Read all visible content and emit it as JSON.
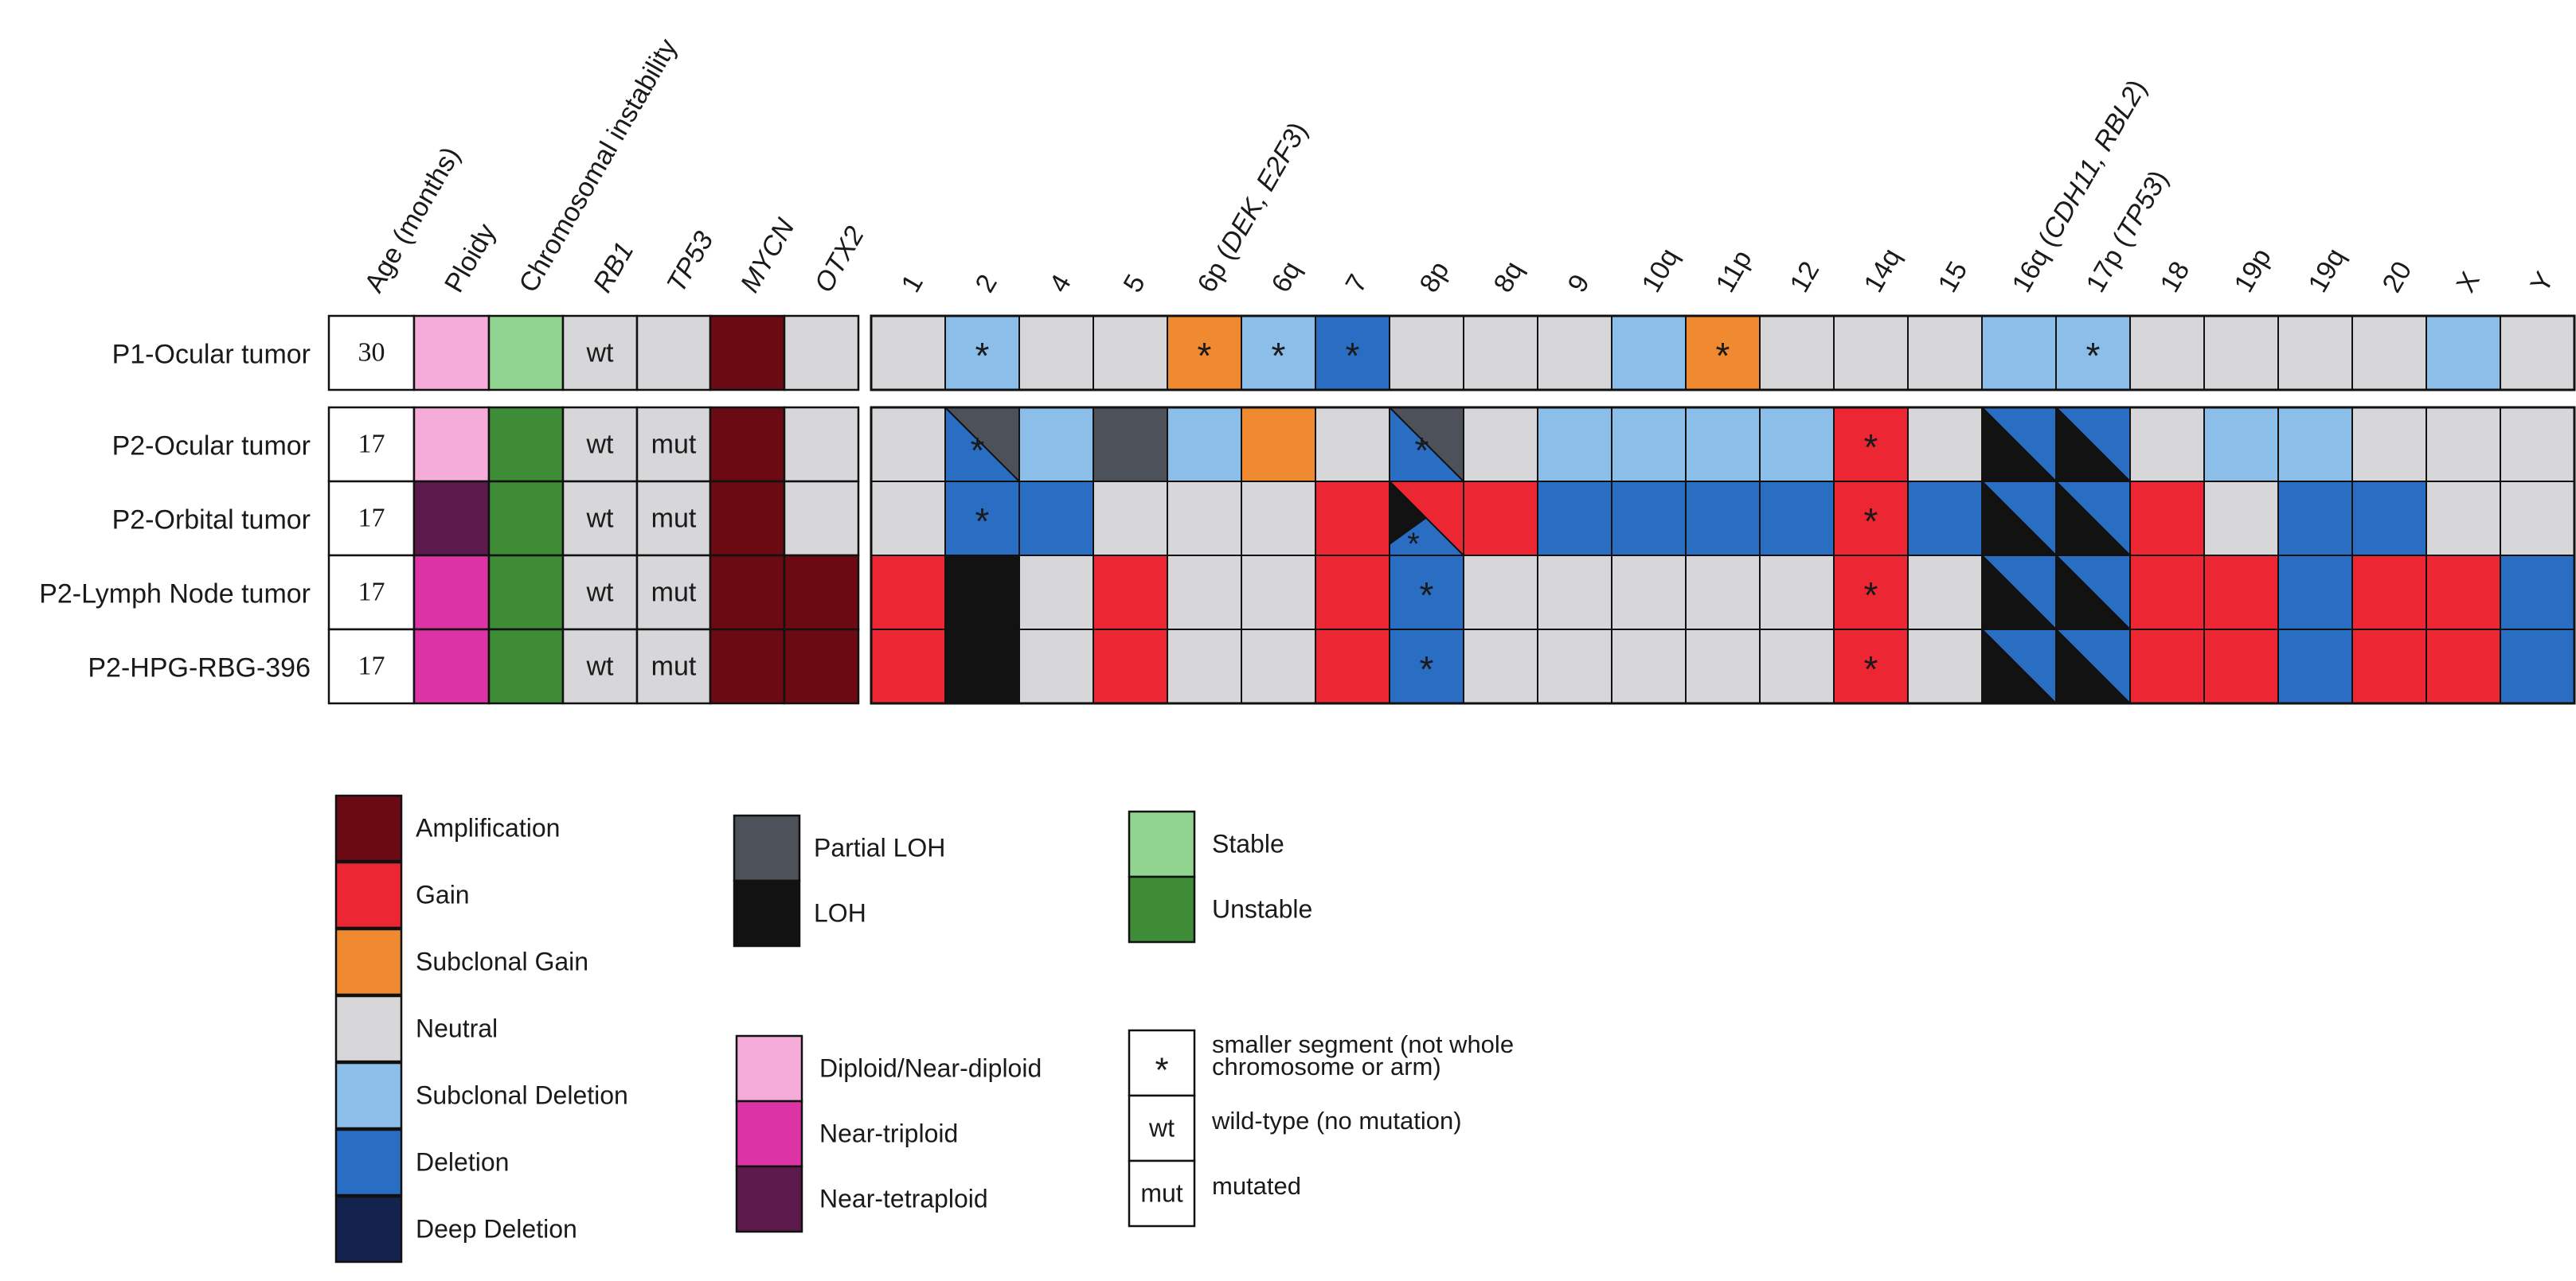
{
  "chart_data": {
    "type": "heatmap",
    "title": "",
    "samples": [
      {
        "name": "P1-Ocular tumor",
        "age": "30"
      },
      {
        "name": "P2-Ocular tumor",
        "age": "17"
      },
      {
        "name": "P2-Orbital tumor",
        "age": "17"
      },
      {
        "name": "P2-Lymph Node tumor",
        "age": "17"
      },
      {
        "name": "P2-HPG-RBG-396",
        "age": "17"
      }
    ],
    "left_columns": [
      {
        "label": "Age (months)",
        "italic": false
      },
      {
        "label": "Ploidy",
        "italic": false
      },
      {
        "label": "Chromosomal instability",
        "italic": false
      },
      {
        "label": "RB1",
        "italic": true
      },
      {
        "label": "TP53",
        "italic": true
      },
      {
        "label": "MYCN",
        "italic": true
      },
      {
        "label": "OTX2",
        "italic": true
      }
    ],
    "chromosome_columns": [
      {
        "parts": [
          "1"
        ]
      },
      {
        "parts": [
          "2"
        ]
      },
      {
        "parts": [
          "4"
        ]
      },
      {
        "parts": [
          "5"
        ]
      },
      {
        "parts": [
          "6p (",
          "DEK, E2F3",
          ")"
        ]
      },
      {
        "parts": [
          "6q"
        ]
      },
      {
        "parts": [
          "7"
        ]
      },
      {
        "parts": [
          "8p"
        ]
      },
      {
        "parts": [
          "8q"
        ]
      },
      {
        "parts": [
          "9"
        ]
      },
      {
        "parts": [
          "10q"
        ]
      },
      {
        "parts": [
          "11p"
        ]
      },
      {
        "parts": [
          "12"
        ]
      },
      {
        "parts": [
          "14q"
        ]
      },
      {
        "parts": [
          "15"
        ]
      },
      {
        "parts": [
          "16q (",
          "CDH11, RBL2",
          ")"
        ]
      },
      {
        "parts": [
          "17p (",
          "TP53",
          ")"
        ]
      },
      {
        "parts": [
          "18"
        ]
      },
      {
        "parts": [
          "19p"
        ]
      },
      {
        "parts": [
          "19q"
        ]
      },
      {
        "parts": [
          "20"
        ]
      },
      {
        "parts": [
          "X"
        ]
      },
      {
        "parts": [
          "Y"
        ]
      }
    ],
    "left_values": [
      [
        "age",
        "diploid",
        "stable",
        "wt",
        "neutral",
        "amplification",
        "neutral"
      ],
      [
        "age",
        "diploid",
        "unstable",
        "wt",
        "mut",
        "amplification",
        "neutral"
      ],
      [
        "age",
        "tetraploid",
        "unstable",
        "wt",
        "mut",
        "amplification",
        "neutral"
      ],
      [
        "age",
        "triploid",
        "unstable",
        "wt",
        "mut",
        "amplification",
        "amplification"
      ],
      [
        "age",
        "triploid",
        "unstable",
        "wt",
        "mut",
        "amplification",
        "amplification"
      ]
    ],
    "cnv": [
      [
        "neutral",
        "subdel*",
        "neutral",
        "neutral",
        "subgain*",
        "subdel*",
        "del*",
        "neutral",
        "neutral",
        "neutral",
        "subdel",
        "subgain*",
        "neutral",
        "neutral",
        "neutral",
        "subdel",
        "subdel*",
        "neutral",
        "neutral",
        "neutral",
        "neutral",
        "subdel",
        "neutral"
      ],
      [
        "neutral",
        "del|partialLOH|*",
        "subdel",
        "partialLOH",
        "subdel",
        "subgain",
        "neutral",
        "del|partialLOH|*",
        "neutral",
        "subdel",
        "subdel",
        "subdel",
        "subdel",
        "gain*",
        "neutral",
        "del|LOH",
        "del|LOH",
        "neutral",
        "subdel",
        "subdel",
        "neutral",
        "neutral",
        "neutral"
      ],
      [
        "neutral",
        "del*",
        "del",
        "neutral",
        "neutral",
        "neutral",
        "gain",
        "LOH|gain|del|*",
        "gain",
        "del",
        "del",
        "del",
        "del",
        "gain*",
        "del",
        "del|LOH",
        "del|LOH",
        "gain",
        "neutral",
        "del",
        "del",
        "neutral",
        "neutral"
      ],
      [
        "gain",
        "LOH",
        "neutral",
        "gain",
        "neutral",
        "neutral",
        "gain",
        "del*",
        "neutral",
        "neutral",
        "neutral",
        "neutral",
        "neutral",
        "gain*",
        "neutral",
        "del|LOH",
        "del|LOH",
        "gain",
        "gain",
        "del",
        "gain",
        "gain",
        "del"
      ],
      [
        "gain",
        "LOH",
        "neutral",
        "gain",
        "neutral",
        "neutral",
        "gain",
        "del*",
        "neutral",
        "neutral",
        "neutral",
        "neutral",
        "neutral",
        "gain*",
        "neutral",
        "del|LOH",
        "del|LOH",
        "gain",
        "gain",
        "del",
        "gain",
        "gain",
        "del"
      ]
    ],
    "legend": {
      "copy_number": [
        {
          "label": "Amplification",
          "color": "#6b0a12"
        },
        {
          "label": "Gain",
          "color": "#ec2733"
        },
        {
          "label": "Subclonal Gain",
          "color": "#ef8a31"
        },
        {
          "label": "Neutral",
          "color": "#d7d7d9"
        },
        {
          "label": "Subclonal Deletion",
          "color": "#8bbee9"
        },
        {
          "label": "Deletion",
          "color": "#2a6ec3"
        },
        {
          "label": "Deep Deletion",
          "color": "#14234d"
        }
      ],
      "loh": [
        {
          "label": "Partial LOH",
          "color": "#4d515a"
        },
        {
          "label": "LOH",
          "color": "#121212"
        }
      ],
      "ploidy": [
        {
          "label": "Diploid/Near-diploid",
          "color": "#f5acd9"
        },
        {
          "label": "Near-triploid",
          "color": "#dc33a5"
        },
        {
          "label": "Near-tetraploid",
          "color": "#5c1a4c"
        }
      ],
      "instability": [
        {
          "label": "Stable",
          "color": "#90d490"
        },
        {
          "label": "Unstable",
          "color": "#3e8c36"
        }
      ],
      "symbols": [
        {
          "symbol": "*",
          "label_lines": [
            "smaller segment (not whole",
            "chromosome or arm)"
          ]
        },
        {
          "symbol": "wt",
          "label_lines": [
            "wild-type (no mutation)"
          ]
        },
        {
          "symbol": "mut",
          "label_lines": [
            "mutated"
          ]
        }
      ]
    }
  },
  "colors": {
    "amplification": "#6b0a12",
    "gain": "#ec2733",
    "subgain": "#ef8a31",
    "neutral": "#d7d7d9",
    "subdel": "#8bbee9",
    "del": "#2a6ec3",
    "deepdel": "#14234d",
    "partialLOH": "#4d515a",
    "LOH": "#121212",
    "diploid": "#f5acd9",
    "triploid": "#dc33a5",
    "tetraploid": "#5c1a4c",
    "stable": "#90d490",
    "unstable": "#3e8c36",
    "age": "#ffffff"
  }
}
